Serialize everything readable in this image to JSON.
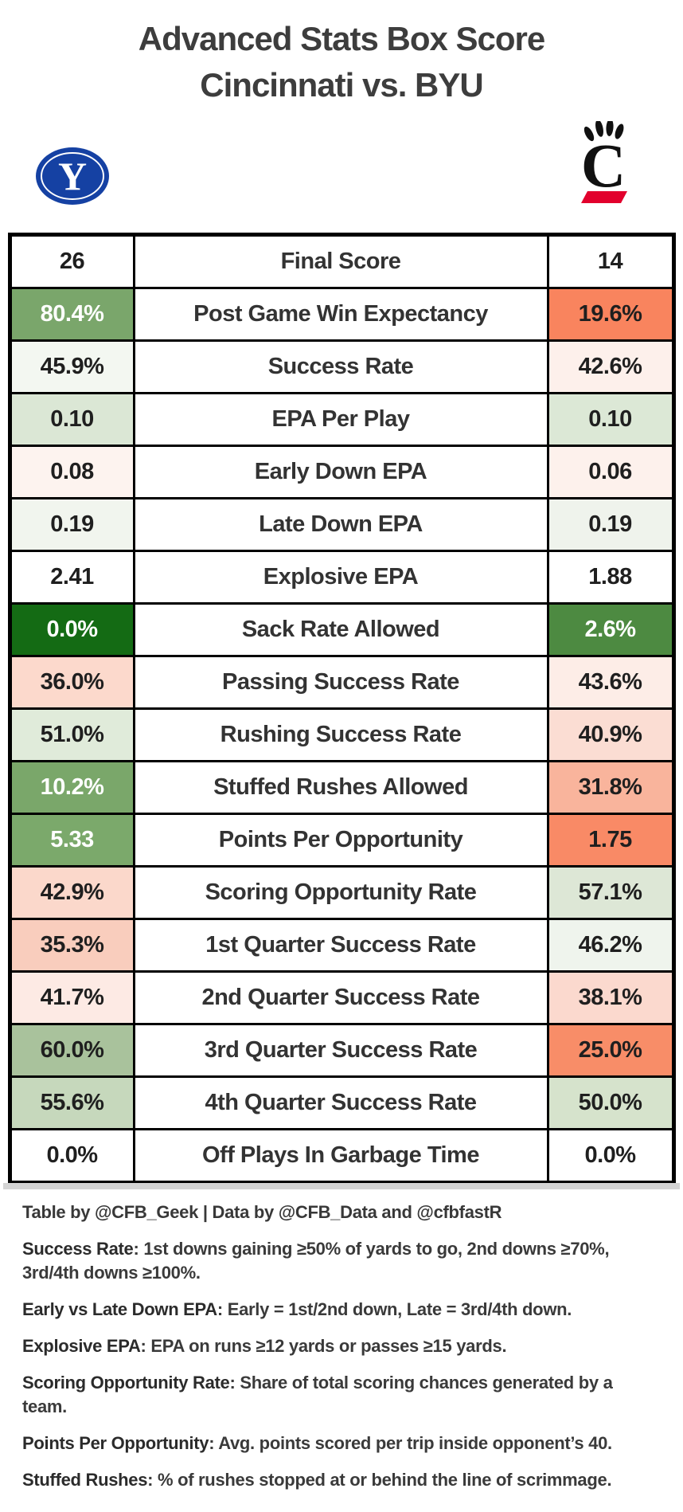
{
  "title": {
    "line1": "Advanced Stats Box Score",
    "line2": "Cincinnati vs. BYU"
  },
  "teams": {
    "left": {
      "name": "BYU",
      "logo_icon": "byu-y-oval-logo",
      "color": "#1541a3"
    },
    "right": {
      "name": "Cincinnati",
      "logo_icon": "cincinnati-c-claw-logo",
      "color_black": "#111111",
      "color_red": "#e2012d"
    }
  },
  "table": {
    "columns": [
      "BYU value",
      "Stat",
      "Cincinnati value"
    ],
    "rows": [
      {
        "stat": "Final Score",
        "left": {
          "value": "26",
          "bg": "#ffffff",
          "fg": "#1f1f1f"
        },
        "right": {
          "value": "14",
          "bg": "#ffffff",
          "fg": "#1f1f1f"
        }
      },
      {
        "stat": "Post Game Win Expectancy",
        "left": {
          "value": "80.4%",
          "bg": "#7aa66b",
          "fg": "#ffffff"
        },
        "right": {
          "value": "19.6%",
          "bg": "#f9845e",
          "fg": "#1f1f1f"
        }
      },
      {
        "stat": "Success Rate",
        "left": {
          "value": "45.9%",
          "bg": "#f3f7f1",
          "fg": "#1f1f1f"
        },
        "right": {
          "value": "42.6%",
          "bg": "#fdf0eb",
          "fg": "#1f1f1f"
        }
      },
      {
        "stat": "EPA Per Play",
        "left": {
          "value": "0.10",
          "bg": "#dbe7d5",
          "fg": "#1f1f1f"
        },
        "right": {
          "value": "0.10",
          "bg": "#dce8d6",
          "fg": "#1f1f1f"
        }
      },
      {
        "stat": "Early Down EPA",
        "left": {
          "value": "0.08",
          "bg": "#fdf3ef",
          "fg": "#1f1f1f"
        },
        "right": {
          "value": "0.06",
          "bg": "#fdf1ec",
          "fg": "#1f1f1f"
        }
      },
      {
        "stat": "Late Down EPA",
        "left": {
          "value": "0.19",
          "bg": "#f1f5ee",
          "fg": "#1f1f1f"
        },
        "right": {
          "value": "0.19",
          "bg": "#eff3ec",
          "fg": "#1f1f1f"
        }
      },
      {
        "stat": "Explosive EPA",
        "left": {
          "value": "2.41",
          "bg": "#ffffff",
          "fg": "#1f1f1f"
        },
        "right": {
          "value": "1.88",
          "bg": "#ffffff",
          "fg": "#1f1f1f"
        }
      },
      {
        "stat": "Sack Rate Allowed",
        "left": {
          "value": "0.0%",
          "bg": "#146b14",
          "fg": "#ffffff"
        },
        "right": {
          "value": "2.6%",
          "bg": "#4d8a41",
          "fg": "#ffffff"
        }
      },
      {
        "stat": "Passing Success Rate",
        "left": {
          "value": "36.0%",
          "bg": "#fcd9cc",
          "fg": "#1f1f1f"
        },
        "right": {
          "value": "43.6%",
          "bg": "#fdede7",
          "fg": "#1f1f1f"
        }
      },
      {
        "stat": "Rushing Success Rate",
        "left": {
          "value": "51.0%",
          "bg": "#e0ebda",
          "fg": "#1f1f1f"
        },
        "right": {
          "value": "40.9%",
          "bg": "#fbddd3",
          "fg": "#1f1f1f"
        }
      },
      {
        "stat": "Stuffed Rushes Allowed",
        "left": {
          "value": "10.2%",
          "bg": "#7aa76a",
          "fg": "#ffffff"
        },
        "right": {
          "value": "31.8%",
          "bg": "#f9b49c",
          "fg": "#1f1f1f"
        }
      },
      {
        "stat": "Points Per Opportunity",
        "left": {
          "value": "5.33",
          "bg": "#7ba96b",
          "fg": "#ffffff"
        },
        "right": {
          "value": "1.75",
          "bg": "#f98a66",
          "fg": "#1f1f1f"
        }
      },
      {
        "stat": "Scoring Opportunity Rate",
        "left": {
          "value": "42.9%",
          "bg": "#fbd8cb",
          "fg": "#1f1f1f"
        },
        "right": {
          "value": "57.1%",
          "bg": "#dde7d6",
          "fg": "#1f1f1f"
        }
      },
      {
        "stat": "1st Quarter Success Rate",
        "left": {
          "value": "35.3%",
          "bg": "#f9cdbd",
          "fg": "#1f1f1f"
        },
        "right": {
          "value": "46.2%",
          "bg": "#eff4ed",
          "fg": "#1f1f1f"
        }
      },
      {
        "stat": "2nd Quarter Success Rate",
        "left": {
          "value": "41.7%",
          "bg": "#fdeae4",
          "fg": "#1f1f1f"
        },
        "right": {
          "value": "38.1%",
          "bg": "#fbd9ce",
          "fg": "#1f1f1f"
        }
      },
      {
        "stat": "3rd Quarter Success Rate",
        "left": {
          "value": "60.0%",
          "bg": "#a9c29c",
          "fg": "#1f1f1f"
        },
        "right": {
          "value": "25.0%",
          "bg": "#f88d68",
          "fg": "#1f1f1f"
        }
      },
      {
        "stat": "4th Quarter Success Rate",
        "left": {
          "value": "55.6%",
          "bg": "#c6d8bc",
          "fg": "#1f1f1f"
        },
        "right": {
          "value": "50.0%",
          "bg": "#d6e3cc",
          "fg": "#1f1f1f"
        }
      },
      {
        "stat": "Off Plays In Garbage Time",
        "left": {
          "value": "0.0%",
          "bg": "#ffffff",
          "fg": "#1f1f1f"
        },
        "right": {
          "value": "0.0%",
          "bg": "#ffffff",
          "fg": "#1f1f1f"
        }
      }
    ]
  },
  "footer": {
    "credit": "Table by @CFB_Geek | Data by @CFB_Data and @cfbfastR",
    "notes": [
      {
        "term": "Success Rate",
        "text": ": 1st downs gaining ≥50% of yards to go, 2nd downs ≥70%, 3rd/4th downs ≥100%."
      },
      {
        "term": "Early vs Late Down EPA",
        "text": ": Early = 1st/2nd down, Late = 3rd/4th down."
      },
      {
        "term": "Explosive EPA",
        "text": ": EPA on runs ≥12 yards or passes ≥15 yards."
      },
      {
        "term": "Scoring Opportunity Rate",
        "text": ": Share of total scoring chances generated by a team."
      },
      {
        "term": "Points Per Opportunity",
        "text": ": Avg. points scored per trip inside opponent’s 40."
      },
      {
        "term": "Stuffed Rushes",
        "text": ": % of rushes stopped at or behind the line of scrimmage."
      }
    ]
  },
  "chart_data": {
    "type": "table",
    "title": "Advanced Stats Box Score Cincinnati vs. BYU",
    "columns": [
      "BYU",
      "Stat",
      "Cincinnati"
    ],
    "rows": [
      [
        "26",
        "Final Score",
        "14"
      ],
      [
        "80.4%",
        "Post Game Win Expectancy",
        "19.6%"
      ],
      [
        "45.9%",
        "Success Rate",
        "42.6%"
      ],
      [
        "0.10",
        "EPA Per Play",
        "0.10"
      ],
      [
        "0.08",
        "Early Down EPA",
        "0.06"
      ],
      [
        "0.19",
        "Late Down EPA",
        "0.19"
      ],
      [
        "2.41",
        "Explosive EPA",
        "1.88"
      ],
      [
        "0.0%",
        "Sack Rate Allowed",
        "2.6%"
      ],
      [
        "36.0%",
        "Passing Success Rate",
        "43.6%"
      ],
      [
        "51.0%",
        "Rushing Success Rate",
        "40.9%"
      ],
      [
        "10.2%",
        "Stuffed Rushes Allowed",
        "31.8%"
      ],
      [
        "5.33",
        "Points Per Opportunity",
        "1.75"
      ],
      [
        "42.9%",
        "Scoring Opportunity Rate",
        "57.1%"
      ],
      [
        "35.3%",
        "1st Quarter Success Rate",
        "46.2%"
      ],
      [
        "41.7%",
        "2nd Quarter Success Rate",
        "38.1%"
      ],
      [
        "60.0%",
        "3rd Quarter Success Rate",
        "25.0%"
      ],
      [
        "55.6%",
        "4th Quarter Success Rate",
        "50.0%"
      ],
      [
        "0.0%",
        "Off Plays In Garbage Time",
        "0.0%"
      ]
    ]
  }
}
